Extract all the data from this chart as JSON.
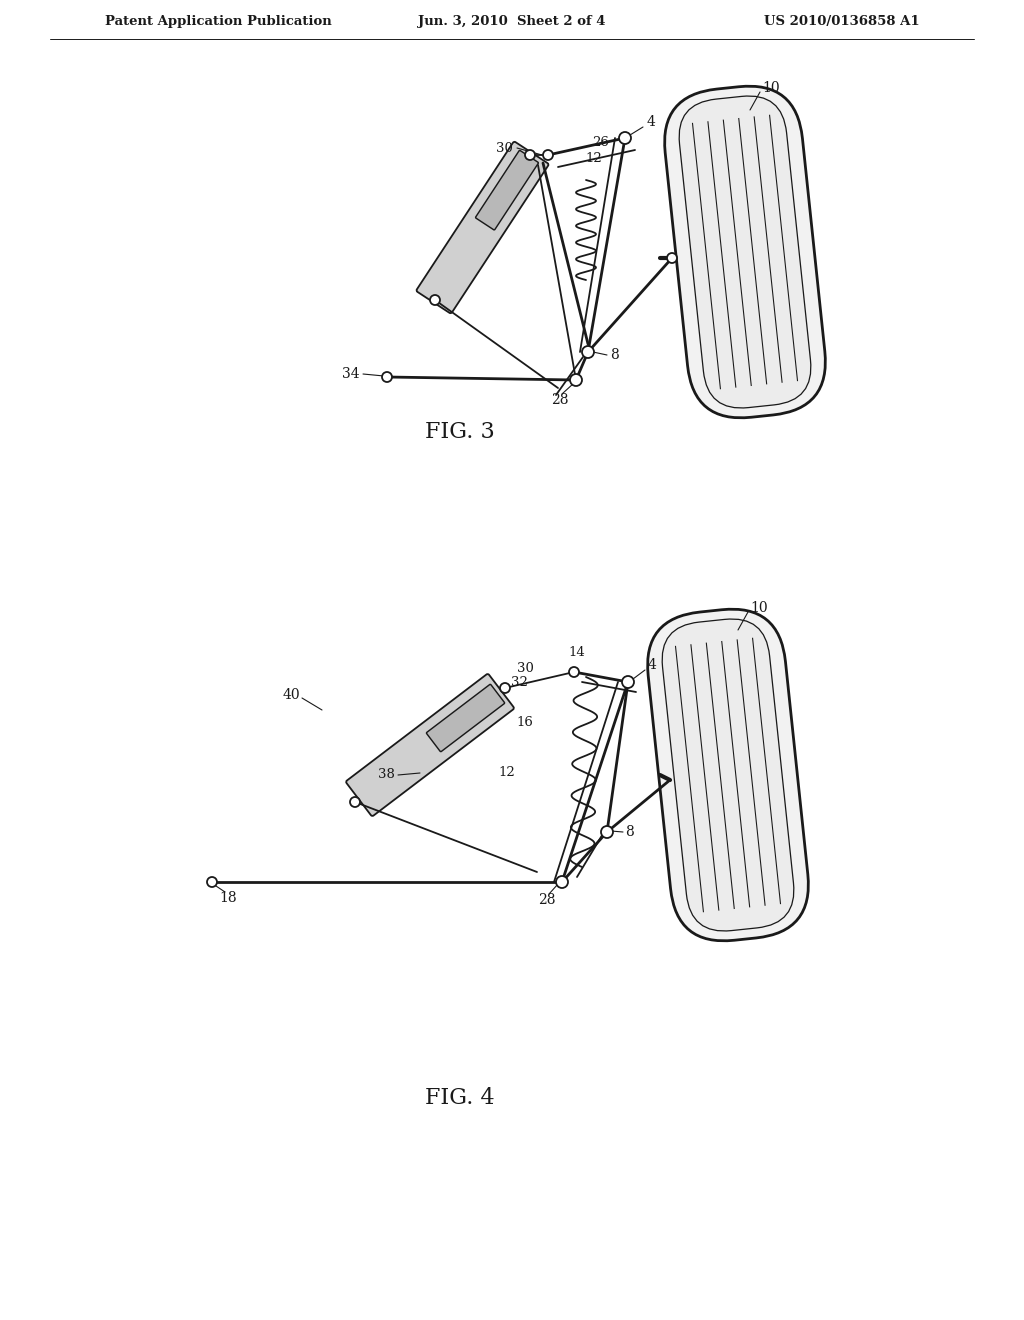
{
  "bg_color": "#ffffff",
  "line_color": "#1a1a1a",
  "header": {
    "left": "Patent Application Publication",
    "center": "Jun. 3, 2010  Sheet 2 of 4",
    "right": "US 2010/0136858 A1"
  },
  "fig3_label": "FIG. 3",
  "fig4_label": "FIG. 4"
}
